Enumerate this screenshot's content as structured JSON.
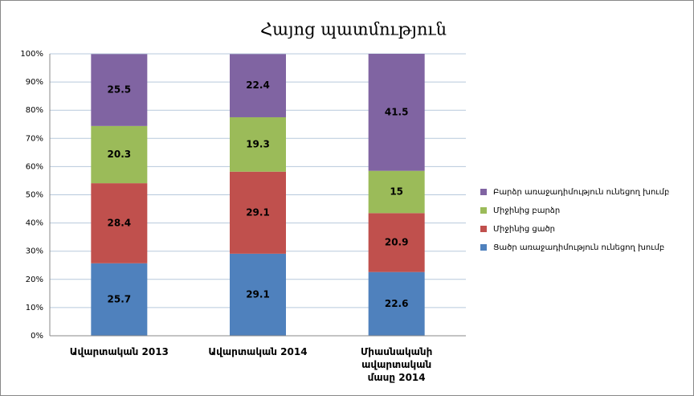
{
  "chart_data": {
    "type": "stacked_bar",
    "title": "Հայոց պատմություն",
    "categories": [
      "Ավարտական 2013",
      "Ավարտական 2014",
      "Միասնականի ավարտական մասը 2014"
    ],
    "series": [
      {
        "name": "Ցածր առաջադիմություն ունեցող խումբ",
        "color": "#4f81bd",
        "values": [
          25.7,
          29.1,
          22.6
        ]
      },
      {
        "name": "Միջինից ցածր",
        "color": "#c0504d",
        "values": [
          28.4,
          29.1,
          20.9
        ]
      },
      {
        "name": "Միջինից բարձր",
        "color": "#9bbb59",
        "values": [
          20.3,
          19.3,
          15
        ]
      },
      {
        "name": "Բարձր առաջադիմություն ունեցող խումբ",
        "color": "#8064a2",
        "values": [
          25.5,
          22.4,
          41.5
        ]
      }
    ],
    "ylim": [
      0,
      100
    ],
    "yticks": [
      {
        "value": 0,
        "label": "0%"
      },
      {
        "value": 10,
        "label": "10%"
      },
      {
        "value": 20,
        "label": "20%"
      },
      {
        "value": 30,
        "label": "30%"
      },
      {
        "value": 40,
        "label": "40%"
      },
      {
        "value": 50,
        "label": "50%"
      },
      {
        "value": 60,
        "label": "60%"
      },
      {
        "value": 70,
        "label": "70%"
      },
      {
        "value": 80,
        "label": "80%"
      },
      {
        "value": 90,
        "label": "90%"
      },
      {
        "value": 100,
        "label": "100%"
      }
    ],
    "grid": true,
    "legend": "right"
  }
}
